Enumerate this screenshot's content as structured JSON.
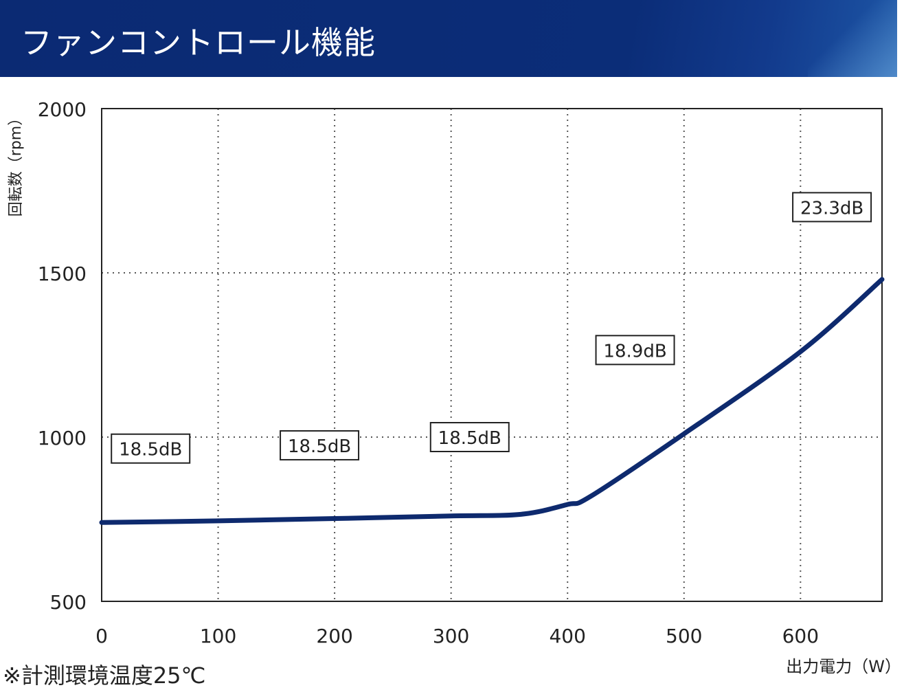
{
  "header": {
    "title": "ファンコントロール機能"
  },
  "footnote": "※計測環境温度25℃",
  "colors": {
    "banner": "#0b2a73",
    "line": "#0e2a6e"
  },
  "chart_data": {
    "type": "line",
    "title": "",
    "ylabel": "回転数（rpm）",
    "xlabel": "出力電力（W）",
    "xlim": [
      0,
      670
    ],
    "ylim": [
      500,
      2000
    ],
    "x_ticks": [
      0,
      100,
      200,
      300,
      400,
      500,
      600
    ],
    "y_ticks": [
      500,
      1000,
      1500,
      2000
    ],
    "grid": true,
    "series": [
      {
        "x": [
          0,
          100,
          200,
          300,
          360,
          400,
          420,
          500,
          600,
          670
        ],
        "y": [
          740,
          745,
          752,
          760,
          765,
          795,
          820,
          1010,
          1260,
          1480
        ]
      }
    ],
    "annotations": [
      {
        "text": "18.5dB",
        "x": 42,
        "y": 965
      },
      {
        "text": "18.5dB",
        "x": 187,
        "y": 975
      },
      {
        "text": "18.5dB",
        "x": 316,
        "y": 1000
      },
      {
        "text": "18.9dB",
        "x": 458,
        "y": 1265
      },
      {
        "text": "23.3dB",
        "x": 627,
        "y": 1700
      }
    ]
  }
}
